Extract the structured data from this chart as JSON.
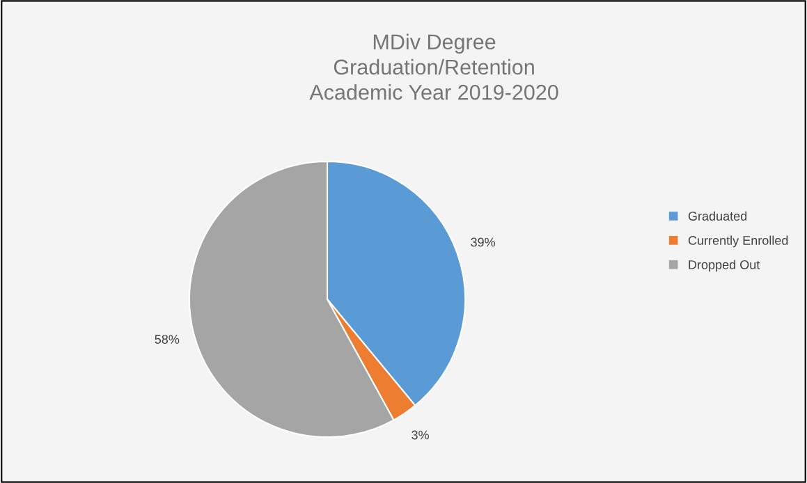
{
  "chart_data": {
    "type": "pie",
    "title": "MDiv Degree\nGraduation/Retention\nAcademic Year 2019-2020",
    "categories": [
      "Graduated",
      "Currently Enrolled",
      "Dropped Out"
    ],
    "values": [
      39,
      3,
      58
    ],
    "colors": [
      "#5b9bd5",
      "#ed7d31",
      "#a5a5a5"
    ],
    "value_labels": [
      "39%",
      "3%",
      "58%"
    ],
    "legend": "right"
  }
}
